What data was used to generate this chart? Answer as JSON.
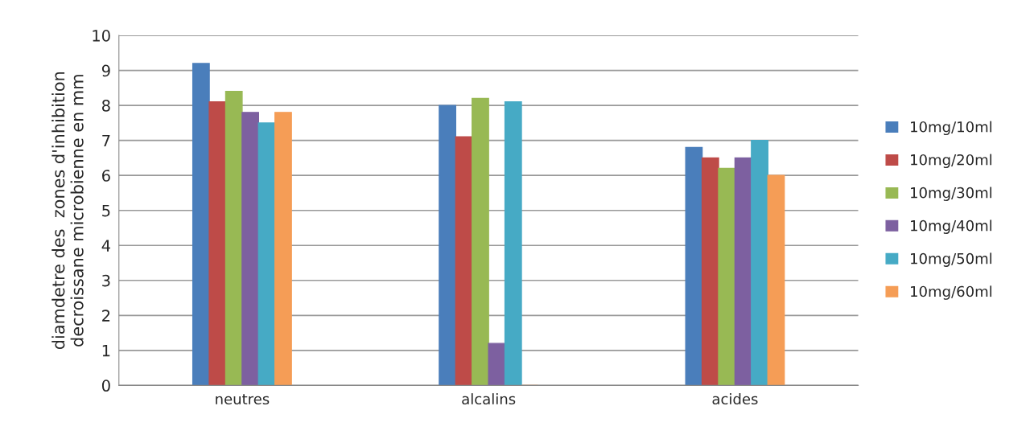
{
  "chart_data": {
    "type": "bar",
    "ylabel": "diamdetre des  zones d'inhibition\ndecroissane microbienne en mm",
    "categories": [
      "neutres",
      "alcalins",
      "acides"
    ],
    "series": [
      {
        "name": "10mg/10ml",
        "color": "#4a7ebb",
        "values": [
          9.2,
          8.0,
          6.8
        ]
      },
      {
        "name": "10mg/20ml",
        "color": "#be4b48",
        "values": [
          8.1,
          7.1,
          6.5
        ]
      },
      {
        "name": "10mg/30ml",
        "color": "#98b954",
        "values": [
          8.4,
          8.2,
          6.2
        ]
      },
      {
        "name": "10mg/40ml",
        "color": "#7d60a0",
        "values": [
          7.8,
          1.2,
          6.5
        ]
      },
      {
        "name": "10mg/50ml",
        "color": "#46aac5",
        "values": [
          7.5,
          8.1,
          7.0
        ]
      },
      {
        "name": "10mg/60ml",
        "color": "#f59d56",
        "values": [
          7.8,
          0,
          6.0
        ]
      }
    ],
    "ylim": [
      0,
      10
    ],
    "yticks": [
      0,
      1,
      2,
      3,
      4,
      5,
      6,
      7,
      8,
      9,
      10
    ],
    "grid": "y",
    "legend": "right"
  }
}
